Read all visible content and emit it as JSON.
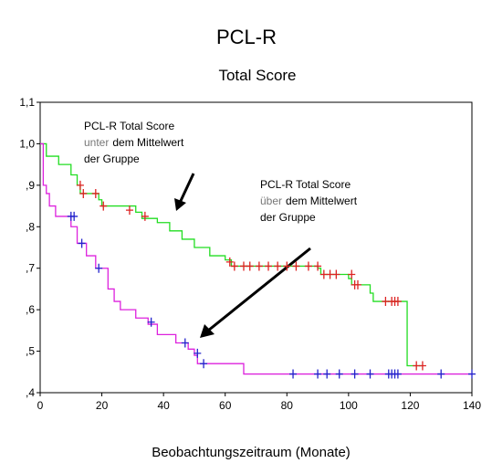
{
  "chart_data": {
    "type": "survival-step",
    "title": "PCL-R",
    "subtitle": "Total Score",
    "xlabel": "Beobachtungszeitraum (Monate)",
    "xlim": [
      0,
      140
    ],
    "xticks": [
      0,
      20,
      40,
      60,
      80,
      100,
      120,
      140
    ],
    "ylim": [
      0.4,
      1.1
    ],
    "yticks": [
      {
        "value": 0.4,
        "label": ",4"
      },
      {
        "value": 0.5,
        "label": ",5"
      },
      {
        "value": 0.6,
        "label": ",6"
      },
      {
        "value": 0.7,
        "label": ",7"
      },
      {
        "value": 0.8,
        "label": ",8"
      },
      {
        "value": 0.9,
        "label": ",9"
      },
      {
        "value": 1.0,
        "label": "1,0"
      },
      {
        "value": 1.1,
        "label": "1,1"
      }
    ],
    "series": [
      {
        "color": "#22dd22",
        "censor_color": "#dd2222",
        "x": [
          0,
          2,
          6,
          10,
          12,
          13,
          19,
          20,
          31,
          33,
          38,
          42,
          46,
          50,
          55,
          60,
          62,
          90,
          91,
          100,
          101,
          107,
          108,
          119,
          124
        ],
        "values": [
          1.0,
          0.97,
          0.95,
          0.925,
          0.9,
          0.88,
          0.865,
          0.85,
          0.835,
          0.82,
          0.81,
          0.79,
          0.77,
          0.75,
          0.73,
          0.72,
          0.705,
          0.7,
          0.685,
          0.675,
          0.66,
          0.64,
          0.62,
          0.465,
          0.465
        ],
        "censor_x": [
          13,
          14,
          18,
          20.5,
          29,
          34,
          61.5,
          63,
          66,
          68,
          71,
          74,
          77,
          80,
          83,
          87,
          90,
          92,
          94,
          96,
          101,
          102,
          103,
          112,
          114,
          115,
          116,
          122,
          124
        ],
        "censor_values": [
          0.9,
          0.88,
          0.88,
          0.85,
          0.84,
          0.825,
          0.715,
          0.705,
          0.705,
          0.705,
          0.705,
          0.705,
          0.705,
          0.705,
          0.705,
          0.705,
          0.705,
          0.685,
          0.685,
          0.685,
          0.685,
          0.66,
          0.66,
          0.62,
          0.62,
          0.62,
          0.62,
          0.465,
          0.465
        ]
      },
      {
        "color": "#dd22dd",
        "censor_color": "#2222cc",
        "x": [
          0,
          1,
          2,
          3,
          5,
          10,
          12,
          15,
          18,
          22,
          24,
          26,
          31,
          35,
          38,
          44,
          48,
          50,
          51,
          66,
          140
        ],
        "values": [
          1.0,
          0.9,
          0.88,
          0.85,
          0.825,
          0.8,
          0.76,
          0.73,
          0.7,
          0.65,
          0.62,
          0.6,
          0.58,
          0.565,
          0.54,
          0.52,
          0.505,
          0.49,
          0.47,
          0.445,
          0.445
        ],
        "censor_x": [
          10,
          11,
          13.5,
          19,
          36,
          47,
          51,
          53,
          82,
          90,
          93,
          97,
          102,
          107,
          113,
          114,
          115,
          116,
          130,
          140
        ],
        "censor_values": [
          0.825,
          0.825,
          0.76,
          0.7,
          0.57,
          0.52,
          0.495,
          0.47,
          0.445,
          0.445,
          0.445,
          0.445,
          0.445,
          0.445,
          0.445,
          0.445,
          0.445,
          0.445,
          0.445,
          0.445
        ]
      }
    ],
    "annotations": [
      {
        "line1": "PCL-R Total Score",
        "line2a": "unter",
        "line2b": "dem Mittelwert",
        "line3": "der Gruppe"
      },
      {
        "line1": "PCL-R Total Score",
        "line2a": "über",
        "line2b": "dem Mittelwert",
        "line3": "der Gruppe"
      }
    ]
  }
}
